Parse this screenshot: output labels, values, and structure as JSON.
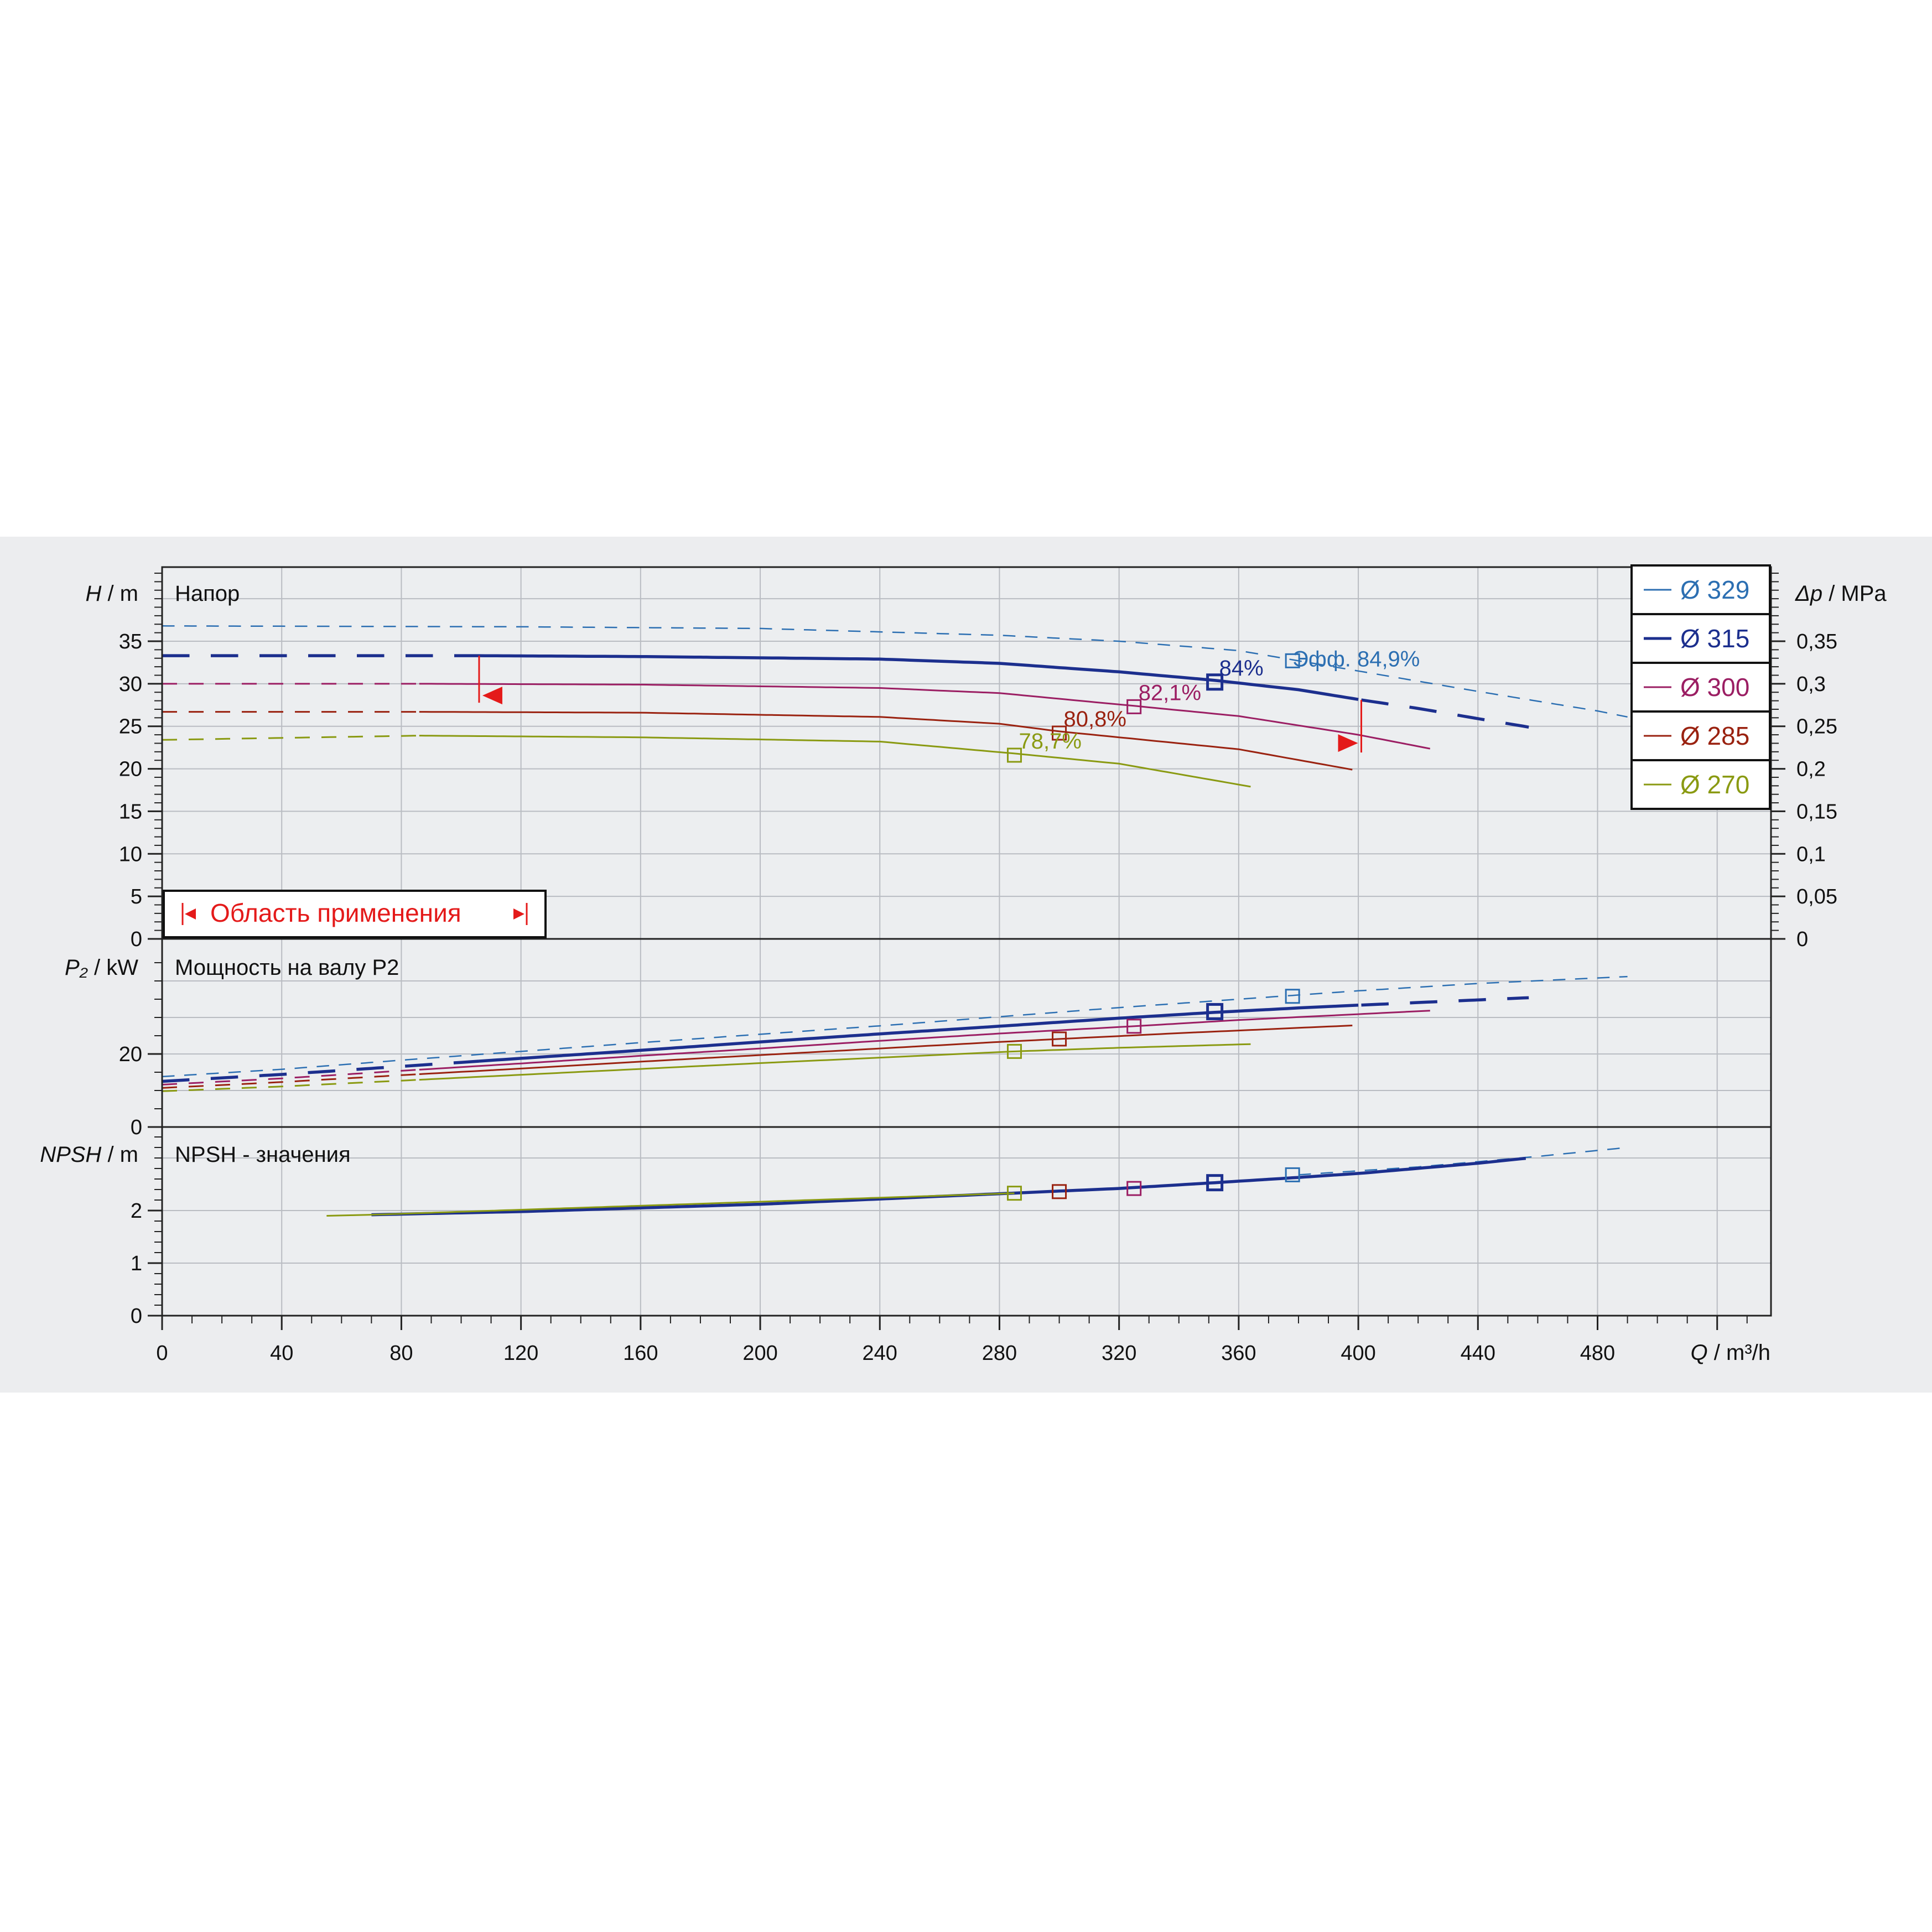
{
  "chart_data": {
    "type": "line",
    "x_axis": {
      "label_symbol": "Q",
      "label_unit": "m³/h",
      "range": [
        0,
        538
      ],
      "ticks": [
        0,
        40,
        80,
        120,
        160,
        200,
        240,
        280,
        320,
        360,
        400,
        440,
        480
      ]
    },
    "head_panel": {
      "title": "Напор",
      "ylabel_symbol": "H",
      "ylabel_unit": "m",
      "ylim": [
        0,
        43
      ],
      "ticks": [
        0,
        5,
        10,
        15,
        20,
        25,
        30,
        35
      ],
      "right_axis": {
        "label_symbol": "Δp",
        "label_unit": "MPa",
        "tick_labels": [
          "0",
          "0,05",
          "0,1",
          "0,15",
          "0,2",
          "0,25",
          "0,3",
          "0,35"
        ],
        "tick_head_values": [
          0,
          5,
          10,
          15,
          20,
          25,
          30,
          35
        ]
      }
    },
    "power_panel": {
      "title": "Мощность на валу P2",
      "ylabel_symbol": "P₂",
      "ylabel_unit": "kW",
      "ylim": [
        0,
        45
      ],
      "ticks": [
        0,
        20
      ]
    },
    "npsh_panel": {
      "title": "NPSH - значения",
      "ylabel_symbol": "NPSH",
      "ylabel_unit": "m",
      "ylim": [
        0,
        3.5
      ],
      "ticks": [
        0,
        1,
        2
      ]
    },
    "operating_range": {
      "label": "Область применения",
      "q_min": 106,
      "q_max": 401,
      "marker_color": "#e41a1a"
    },
    "efficiency_label_prefix": "Эфф.",
    "series": [
      {
        "name": "Ø 329",
        "color": "#2c6fb2",
        "stroke": 2.5,
        "dashed_all": true,
        "q_solid": [
          0,
          0
        ],
        "head": [
          [
            0,
            36.8
          ],
          [
            120,
            36.7
          ],
          [
            200,
            36.5
          ],
          [
            280,
            35.7
          ],
          [
            320,
            35.0
          ],
          [
            360,
            33.9
          ],
          [
            400,
            31.5
          ],
          [
            440,
            29.1
          ],
          [
            480,
            26.8
          ],
          [
            490,
            26.1
          ]
        ],
        "power": [
          [
            0,
            13.8
          ],
          [
            40,
            15.8
          ],
          [
            80,
            18.3
          ],
          [
            120,
            20.7
          ],
          [
            160,
            23.1
          ],
          [
            200,
            25.4
          ],
          [
            240,
            27.7
          ],
          [
            280,
            30.2
          ],
          [
            320,
            32.7
          ],
          [
            360,
            35.0
          ],
          [
            400,
            37.3
          ],
          [
            440,
            39.3
          ],
          [
            490,
            41.2
          ]
        ],
        "npsh": [
          [
            380,
            2.68
          ],
          [
            420,
            2.83
          ],
          [
            460,
            3.03
          ],
          [
            490,
            3.2
          ]
        ],
        "bep": {
          "q": 378,
          "head": 32.7,
          "power": 35.8,
          "npsh": 2.68,
          "label": "84,9%"
        }
      },
      {
        "name": "Ø 315",
        "color": "#1c2f8e",
        "stroke": 5.5,
        "dashed_all": false,
        "q_solid": [
          106,
          401
        ],
        "head": [
          [
            0,
            33.3
          ],
          [
            106,
            33.3
          ],
          [
            160,
            33.2
          ],
          [
            240,
            32.9
          ],
          [
            280,
            32.4
          ],
          [
            320,
            31.4
          ],
          [
            352,
            30.4
          ],
          [
            380,
            29.3
          ],
          [
            401,
            28.1
          ],
          [
            420,
            27.1
          ],
          [
            440,
            25.9
          ],
          [
            457,
            24.9
          ]
        ],
        "power": [
          [
            0,
            12.5
          ],
          [
            40,
            14.4
          ],
          [
            80,
            16.6
          ],
          [
            120,
            18.8
          ],
          [
            160,
            21.0
          ],
          [
            200,
            23.3
          ],
          [
            240,
            25.5
          ],
          [
            280,
            27.6
          ],
          [
            320,
            29.8
          ],
          [
            352,
            31.4
          ],
          [
            380,
            32.6
          ],
          [
            401,
            33.4
          ],
          [
            440,
            34.8
          ],
          [
            457,
            35.4
          ]
        ],
        "npsh": [
          [
            70,
            1.92
          ],
          [
            120,
            1.98
          ],
          [
            160,
            2.05
          ],
          [
            200,
            2.12
          ],
          [
            240,
            2.22
          ],
          [
            280,
            2.32
          ],
          [
            320,
            2.42
          ],
          [
            352,
            2.53
          ],
          [
            380,
            2.63
          ],
          [
            401,
            2.71
          ],
          [
            440,
            2.9
          ],
          [
            457,
            3.0
          ]
        ],
        "bep": {
          "q": 352,
          "head": 30.2,
          "power": 31.6,
          "npsh": 2.53,
          "label": "84%"
        }
      },
      {
        "name": "Ø 300",
        "color": "#9b1e63",
        "stroke": 3,
        "dashed_all": false,
        "q_solid": [
          86,
          425
        ],
        "head": [
          [
            0,
            30.0
          ],
          [
            86,
            30.0
          ],
          [
            160,
            29.9
          ],
          [
            240,
            29.5
          ],
          [
            280,
            28.9
          ],
          [
            325,
            27.4
          ],
          [
            360,
            26.2
          ],
          [
            400,
            24.0
          ],
          [
            425,
            22.3
          ]
        ],
        "power": [
          [
            0,
            11.6
          ],
          [
            40,
            13.3
          ],
          [
            80,
            15.4
          ],
          [
            120,
            17.4
          ],
          [
            160,
            19.5
          ],
          [
            200,
            21.5
          ],
          [
            240,
            23.6
          ],
          [
            280,
            25.6
          ],
          [
            325,
            27.6
          ],
          [
            360,
            29.3
          ],
          [
            400,
            30.9
          ],
          [
            425,
            31.9
          ]
        ],
        "npsh": [
          [
            325,
            2.42
          ]
        ],
        "bep": {
          "q": 325,
          "head": 27.3,
          "power": 27.6,
          "npsh": 2.42,
          "label": "82,1%"
        }
      },
      {
        "name": "Ø 285",
        "color": "#9a2210",
        "stroke": 3,
        "dashed_all": false,
        "q_solid": [
          86,
          398
        ],
        "head": [
          [
            0,
            26.7
          ],
          [
            86,
            26.7
          ],
          [
            160,
            26.6
          ],
          [
            240,
            26.1
          ],
          [
            280,
            25.3
          ],
          [
            300,
            24.4
          ],
          [
            320,
            23.7
          ],
          [
            360,
            22.3
          ],
          [
            398,
            19.9
          ]
        ],
        "power": [
          [
            0,
            10.7
          ],
          [
            40,
            12.3
          ],
          [
            80,
            14.2
          ],
          [
            120,
            16.0
          ],
          [
            160,
            17.9
          ],
          [
            200,
            19.7
          ],
          [
            240,
            21.5
          ],
          [
            280,
            23.3
          ],
          [
            300,
            24.1
          ],
          [
            340,
            25.7
          ],
          [
            398,
            27.8
          ]
        ],
        "npsh": [
          [
            300,
            2.36
          ]
        ],
        "bep": {
          "q": 300,
          "head": 24.2,
          "power": 24.1,
          "npsh": 2.36,
          "label": "80,8%"
        }
      },
      {
        "name": "Ø 270",
        "color": "#8a9a12",
        "stroke": 3,
        "dashed_all": false,
        "q_solid": [
          86,
          364
        ],
        "head": [
          [
            0,
            23.4
          ],
          [
            86,
            23.9
          ],
          [
            160,
            23.7
          ],
          [
            240,
            23.2
          ],
          [
            285,
            21.8
          ],
          [
            320,
            20.6
          ],
          [
            364,
            17.9
          ]
        ],
        "power": [
          [
            0,
            9.8
          ],
          [
            40,
            11.1
          ],
          [
            80,
            12.7
          ],
          [
            120,
            14.3
          ],
          [
            160,
            15.9
          ],
          [
            200,
            17.5
          ],
          [
            240,
            19.0
          ],
          [
            285,
            20.7
          ],
          [
            320,
            21.7
          ],
          [
            364,
            22.7
          ]
        ],
        "npsh": [
          [
            55,
            1.9
          ],
          [
            70,
            1.92
          ],
          [
            285,
            2.33
          ]
        ],
        "bep": {
          "q": 285,
          "head": 21.6,
          "power": 20.7,
          "npsh": 2.33,
          "label": "78,7%"
        }
      }
    ],
    "grid": true,
    "legend_position": "top-right"
  }
}
